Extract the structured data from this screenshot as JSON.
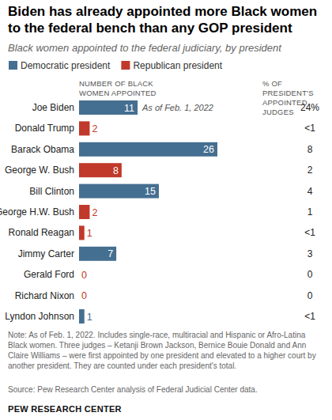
{
  "chart_data": {
    "type": "bar",
    "orientation": "horizontal",
    "title": "Biden has already appointed more Black women to the federal bench than any GOP president",
    "subtitle": "Black women appointed to the federal judiciary, by president",
    "value_header": "NUMBER OF BLACK WOMEN APPOINTED",
    "percent_header": "% OF PRESIDENT'S APPOINTED JUDGES",
    "categories": [
      "Joe Biden",
      "Donald Trump",
      "Barack Obama",
      "George W. Bush",
      "Bill Clinton",
      "George H.W. Bush",
      "Ronald Reagan",
      "Jimmy Carter",
      "Gerald Ford",
      "Richard Nixon",
      "Lyndon Johnson"
    ],
    "values": [
      11,
      2,
      26,
      8,
      15,
      2,
      1,
      7,
      0,
      0,
      1
    ],
    "colors": [
      "#456f91",
      "#c0392b",
      "#456f91",
      "#c0392b",
      "#456f91",
      "#c0392b",
      "#c0392b",
      "#456f91",
      "#c0392b",
      "#c0392b",
      "#456f91"
    ],
    "percent_labels": [
      "24%",
      "<1",
      "8",
      "2",
      "4",
      "1",
      "<1",
      "3",
      "0",
      "0",
      "<1"
    ],
    "legend_entries": [
      {
        "name": "Democratic president",
        "color": "#456f91"
      },
      {
        "name": "Republican president",
        "color": "#c0392b"
      }
    ],
    "annotation": "As of Feb. 1, 2022",
    "xlim": [
      0,
      26
    ],
    "xticks": [],
    "tick_labels": false,
    "grid": false,
    "legend": "top-left",
    "data_labels": true,
    "note": "Note: As of Feb. 1, 2022. Includes single-race, multiracial and Hispanic or Afro-Latina Black women. Three judges – Ketanji Brown Jackson, Bernice Bouie Donald and Ann Claire Williams – were first appointed by one president and elevated to a higher court by another president. They are counted under each president's total.",
    "source": "Source: Pew Research Center analysis of Federal Judicial Center data.",
    "credit": "PEW RESEARCH CENTER"
  }
}
